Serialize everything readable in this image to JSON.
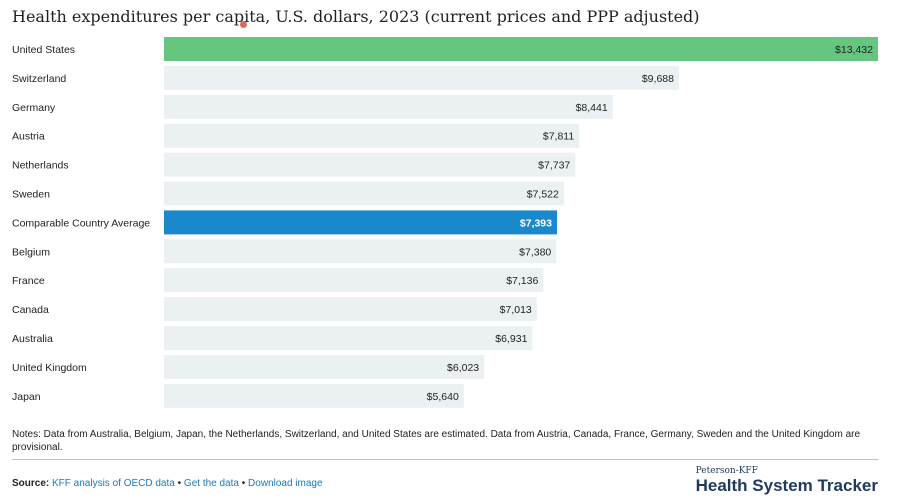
{
  "title": "Health expenditures per capita, U.S. dollars, 2023 (current prices and PPP adjusted)",
  "chart_data": {
    "type": "bar",
    "orientation": "horizontal",
    "categories": [
      "United States",
      "Switzerland",
      "Germany",
      "Austria",
      "Netherlands",
      "Sweden",
      "Comparable Country Average",
      "Belgium",
      "France",
      "Canada",
      "Australia",
      "United Kingdom",
      "Japan"
    ],
    "values": [
      13432,
      9688,
      8441,
      7811,
      7737,
      7522,
      7393,
      7380,
      7136,
      7013,
      6931,
      6023,
      5640
    ],
    "value_labels": [
      "$13,432",
      "$9,688",
      "$8,441",
      "$7,811",
      "$7,737",
      "$7,522",
      "$7,393",
      "$7,380",
      "$7,136",
      "$7,013",
      "$6,931",
      "$6,023",
      "$5,640"
    ],
    "highlight": {
      "United States": "#66c67f",
      "Comparable Country Average": "#1a88cc"
    },
    "default_color": "#ebf0f2",
    "xlim": [
      0,
      13432
    ],
    "grid": false
  },
  "notes": "Notes: Data from Australia, Belgium, Japan, the Netherlands, Switzerland, and United States are estimated. Data from Austria, Canada, France, Germany, Sweden and the United Kingdom are provisional.",
  "source": {
    "label": "Source:",
    "link1": "KFF analysis of OECD data",
    "sep1": "•",
    "link2": "Get the data",
    "sep2": "•",
    "link3": "Download image"
  },
  "brand": {
    "small": "Peterson-KFF",
    "big": "Health System Tracker"
  }
}
